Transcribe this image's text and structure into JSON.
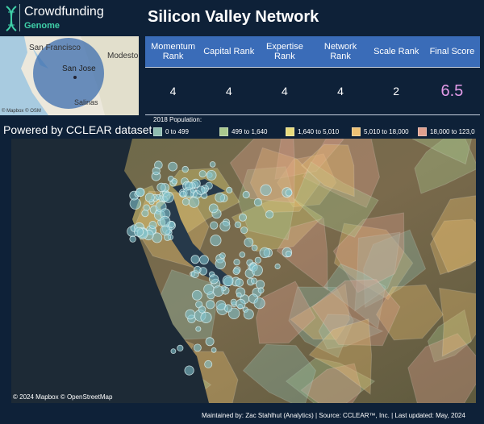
{
  "header": {
    "logo": {
      "name": "Crowdfunding",
      "subtitle": "Genome"
    },
    "title": "Silicon Valley Network"
  },
  "mini_map": {
    "labels": [
      "San Francisco",
      "Modesto",
      "San Jose",
      "Salinas"
    ],
    "attribution": "© Mapbox © OSM"
  },
  "score_table": {
    "columns": [
      "Momentum Rank",
      "Capital Rank",
      "Expertise Rank",
      "Network Rank",
      "Scale Rank",
      "Final Score"
    ],
    "values": [
      4,
      4,
      4,
      4,
      2,
      6.5
    ]
  },
  "powered_by": "Powered by CCLEAR dataset",
  "legend": {
    "title": "2018 Population:",
    "items": [
      {
        "label": "0 to 499",
        "color": "#8fbcb0"
      },
      {
        "label": "499 to 1,640",
        "color": "#a9c98e"
      },
      {
        "label": "1,640 to 5,010",
        "color": "#e8db7c"
      },
      {
        "label": "5,010 to 18,000",
        "color": "#efc274"
      },
      {
        "label": "18,000 to 123,0",
        "color": "#e0a08e"
      }
    ]
  },
  "main_map": {
    "attribution": "© 2024 Mapbox © OpenStreetMap"
  },
  "footer": "Maintained by: Zac Stahlhut (Analytics) | Source: CCLEAR™, Inc. | Last updated: May, 2024"
}
